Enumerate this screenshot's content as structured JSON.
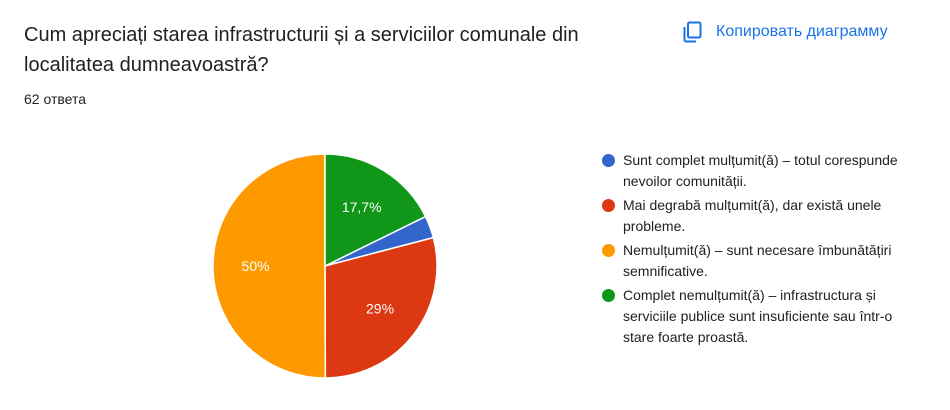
{
  "question": {
    "title": "Cum apreciați starea infrastructurii și a serviciilor comunale din localitatea dumneavoastră?",
    "responses": "62 ответа"
  },
  "toolbar": {
    "copy_label": "Копировать диаграмму",
    "copy_icon": "copy-icon"
  },
  "colors": {
    "accent": "#1a73e8"
  },
  "chart_data": {
    "type": "pie",
    "categories": [
      "Sunt complet mulțumit(ă) – totul corespunde nevoilor comunității.",
      "Mai degrabă mulțumit(ă), dar există unele probleme.",
      "Nemulțumit(ă) – sunt necesare îmbunătățiri semnificative.",
      "Complet nemulțumit(ă) – infrastructura și serviciile publice sunt insuficiente sau într-o stare foarte proastă."
    ],
    "values": [
      3.2,
      29,
      50,
      17.7
    ],
    "data_labels": [
      "",
      "29%",
      "50%",
      "17,7%"
    ],
    "colors": [
      "#3366cc",
      "#dc3912",
      "#ff9900",
      "#109618"
    ],
    "legend_position": "right"
  }
}
